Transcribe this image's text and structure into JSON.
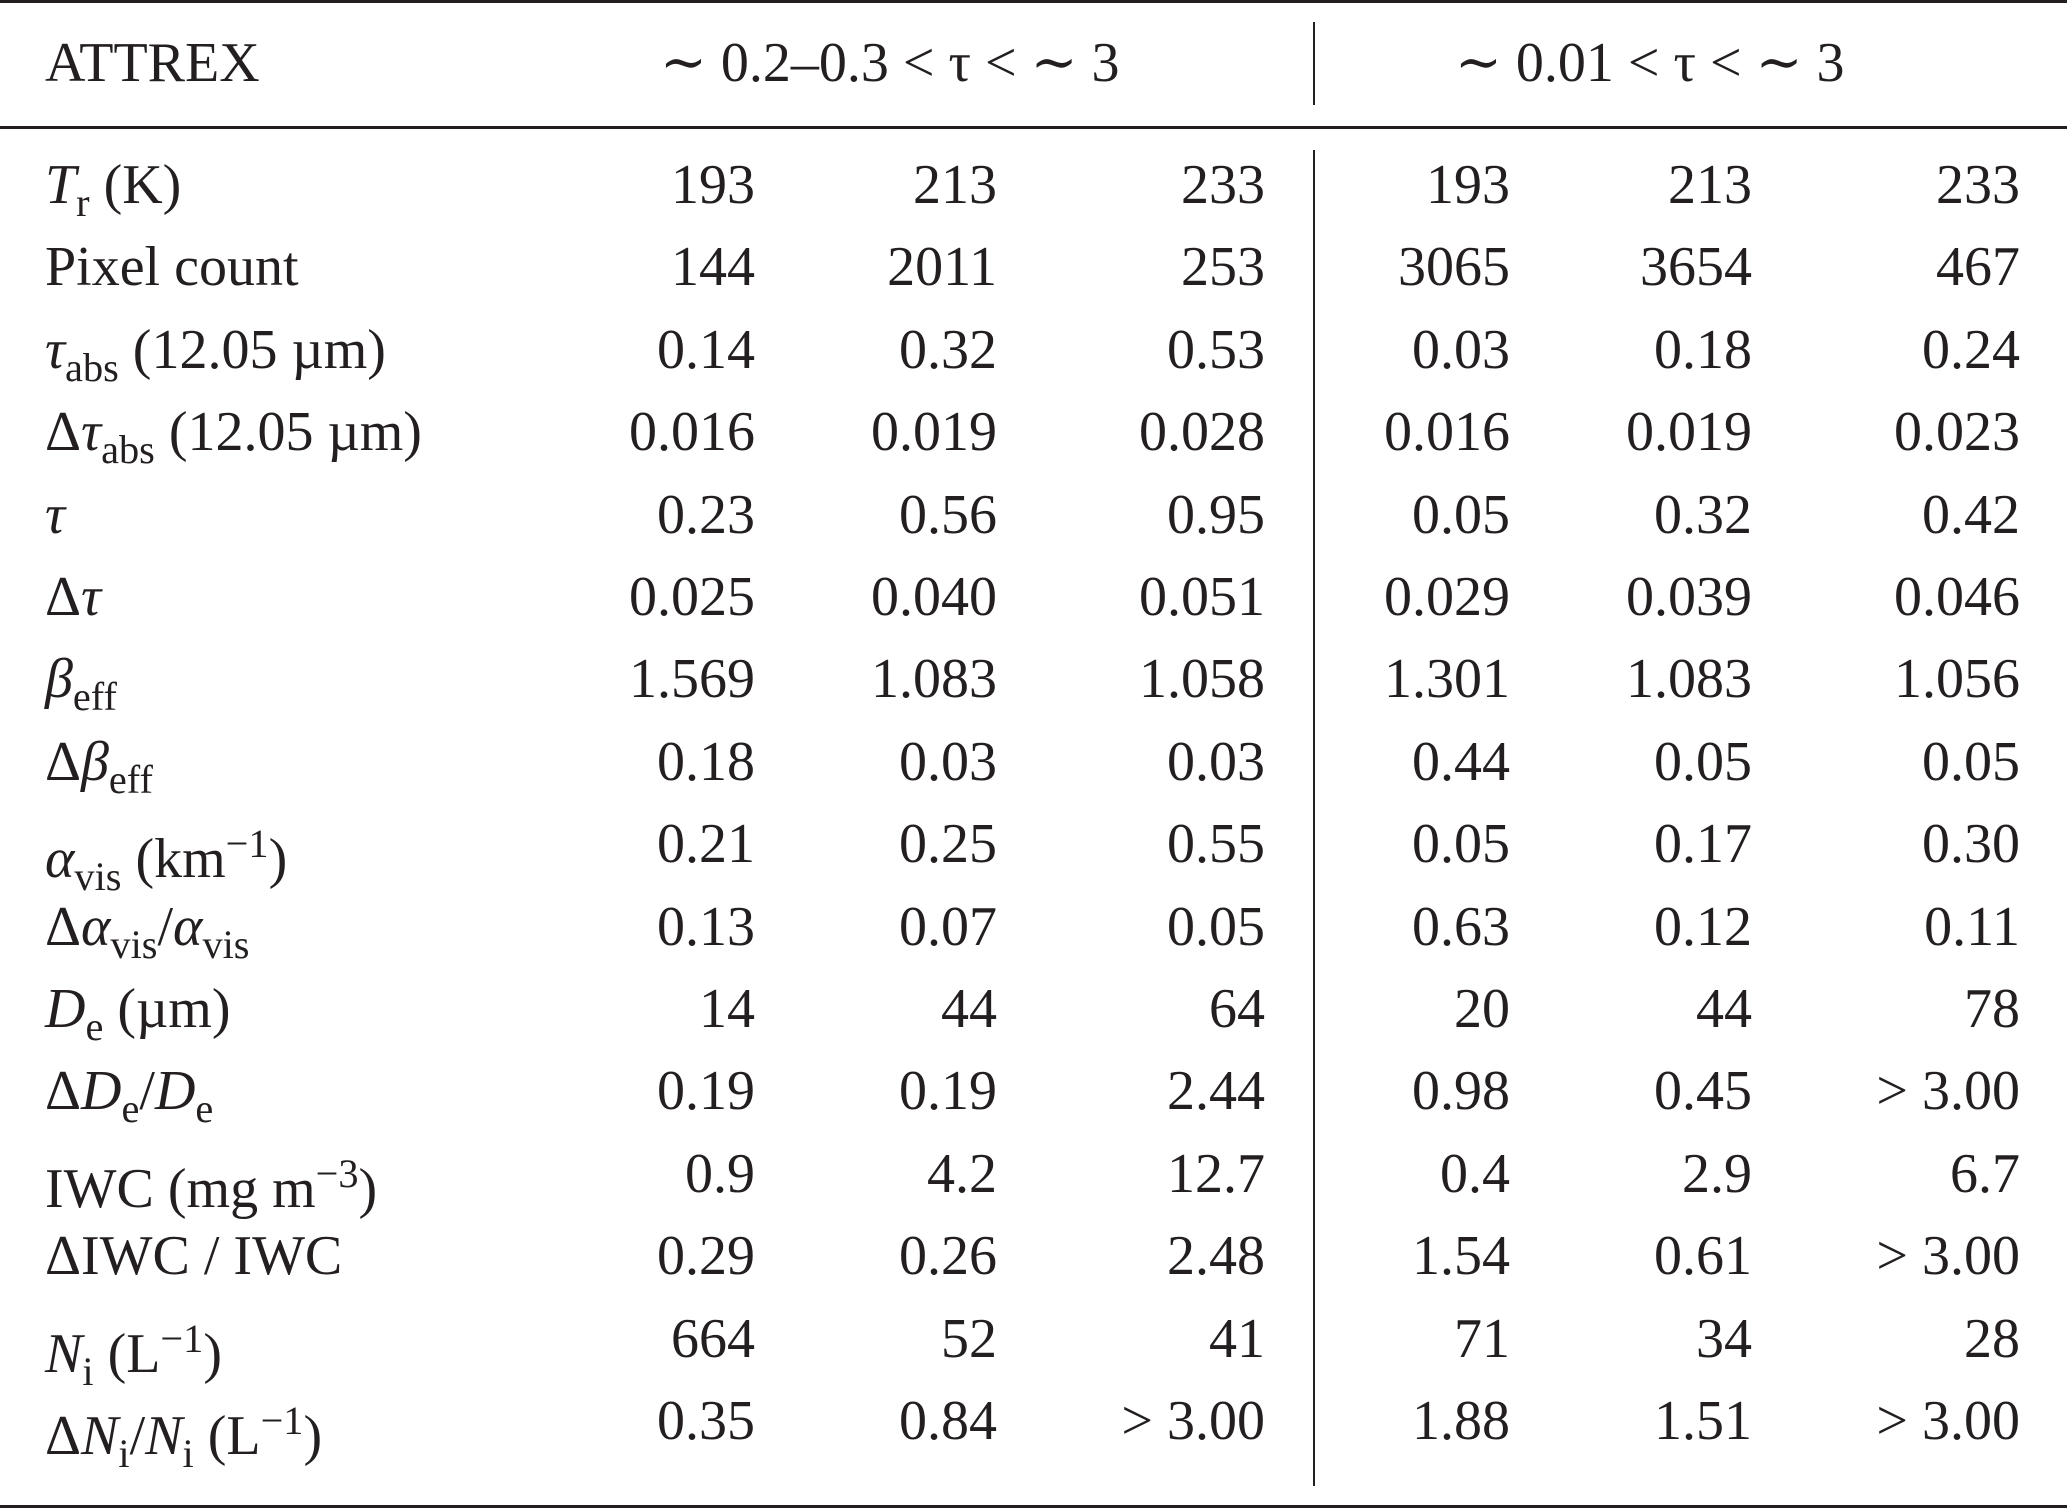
{
  "header": {
    "label": "ATTREX",
    "group_a": "∼ 0.2–0.3 < τ < ∼ 3",
    "group_b": "∼ 0.01 < τ < ∼ 3"
  },
  "rows": [
    {
      "label": [
        {
          "t": "T",
          "s": "it"
        },
        {
          "t": "r",
          "s": "sub"
        },
        {
          "t": " (K)"
        }
      ],
      "values": [
        "193",
        "213",
        "233",
        "193",
        "213",
        "233"
      ]
    },
    {
      "label": [
        {
          "t": "Pixel count"
        }
      ],
      "values": [
        "144",
        "2011",
        "253",
        "3065",
        "3654",
        "467"
      ]
    },
    {
      "label": [
        {
          "t": "τ",
          "s": "it"
        },
        {
          "t": "abs",
          "s": "sub"
        },
        {
          "t": " (12.05 µm)"
        }
      ],
      "values": [
        "0.14",
        "0.32",
        "0.53",
        "0.03",
        "0.18",
        "0.24"
      ]
    },
    {
      "label": [
        {
          "t": "Δ"
        },
        {
          "t": "τ",
          "s": "it"
        },
        {
          "t": "abs",
          "s": "sub"
        },
        {
          "t": " (12.05 µm)"
        }
      ],
      "values": [
        "0.016",
        "0.019",
        "0.028",
        "0.016",
        "0.019",
        "0.023"
      ]
    },
    {
      "label": [
        {
          "t": "τ",
          "s": "it"
        }
      ],
      "values": [
        "0.23",
        "0.56",
        "0.95",
        "0.05",
        "0.32",
        "0.42"
      ]
    },
    {
      "label": [
        {
          "t": "Δ"
        },
        {
          "t": "τ",
          "s": "it"
        }
      ],
      "values": [
        "0.025",
        "0.040",
        "0.051",
        "0.029",
        "0.039",
        "0.046"
      ]
    },
    {
      "label": [
        {
          "t": "β",
          "s": "it"
        },
        {
          "t": "eff",
          "s": "sub"
        }
      ],
      "values": [
        "1.569",
        "1.083",
        "1.058",
        "1.301",
        "1.083",
        "1.056"
      ]
    },
    {
      "label": [
        {
          "t": "Δ"
        },
        {
          "t": "β",
          "s": "it"
        },
        {
          "t": "eff",
          "s": "sub"
        }
      ],
      "values": [
        "0.18",
        "0.03",
        "0.03",
        "0.44",
        "0.05",
        "0.05"
      ]
    },
    {
      "label": [
        {
          "t": "α",
          "s": "it"
        },
        {
          "t": "vis",
          "s": "sub"
        },
        {
          "t": " (km"
        },
        {
          "t": "−1",
          "s": "sup"
        },
        {
          "t": ")"
        }
      ],
      "values": [
        "0.21",
        "0.25",
        "0.55",
        "0.05",
        "0.17",
        "0.30"
      ]
    },
    {
      "label": [
        {
          "t": "Δ"
        },
        {
          "t": "α",
          "s": "it"
        },
        {
          "t": "vis",
          "s": "sub"
        },
        {
          "t": "/"
        },
        {
          "t": "α",
          "s": "it"
        },
        {
          "t": "vis",
          "s": "sub"
        }
      ],
      "values": [
        "0.13",
        "0.07",
        "0.05",
        "0.63",
        "0.12",
        "0.11"
      ]
    },
    {
      "label": [
        {
          "t": "D",
          "s": "it"
        },
        {
          "t": "e",
          "s": "sub"
        },
        {
          "t": " (µm)"
        }
      ],
      "values": [
        "14",
        "44",
        "64",
        "20",
        "44",
        "78"
      ]
    },
    {
      "label": [
        {
          "t": "Δ"
        },
        {
          "t": "D",
          "s": "it"
        },
        {
          "t": "e",
          "s": "sub"
        },
        {
          "t": "/"
        },
        {
          "t": "D",
          "s": "it"
        },
        {
          "t": "e",
          "s": "sub"
        }
      ],
      "values": [
        "0.19",
        "0.19",
        "2.44",
        "0.98",
        "0.45",
        "> 3.00"
      ]
    },
    {
      "label": [
        {
          "t": "IWC (mg m"
        },
        {
          "t": "−3",
          "s": "sup"
        },
        {
          "t": ")"
        }
      ],
      "values": [
        "0.9",
        "4.2",
        "12.7",
        "0.4",
        "2.9",
        "6.7"
      ]
    },
    {
      "label": [
        {
          "t": "ΔIWC / IWC"
        }
      ],
      "values": [
        "0.29",
        "0.26",
        "2.48",
        "1.54",
        "0.61",
        "> 3.00"
      ]
    },
    {
      "label": [
        {
          "t": "N",
          "s": "it"
        },
        {
          "t": "i",
          "s": "sub"
        },
        {
          "t": " (L"
        },
        {
          "t": "−1",
          "s": "sup"
        },
        {
          "t": ")"
        }
      ],
      "values": [
        "664",
        "52",
        "41",
        "71",
        "34",
        "28"
      ]
    },
    {
      "label": [
        {
          "t": "Δ"
        },
        {
          "t": "N",
          "s": "it"
        },
        {
          "t": "i",
          "s": "sub"
        },
        {
          "t": "/"
        },
        {
          "t": "N",
          "s": "it"
        },
        {
          "t": "i",
          "s": "sub"
        },
        {
          "t": " (L"
        },
        {
          "t": "−1",
          "s": "sup"
        },
        {
          "t": ")"
        }
      ],
      "values": [
        "0.35",
        "0.84",
        "> 3.00",
        "1.88",
        "1.51",
        "> 3.00"
      ]
    }
  ]
}
